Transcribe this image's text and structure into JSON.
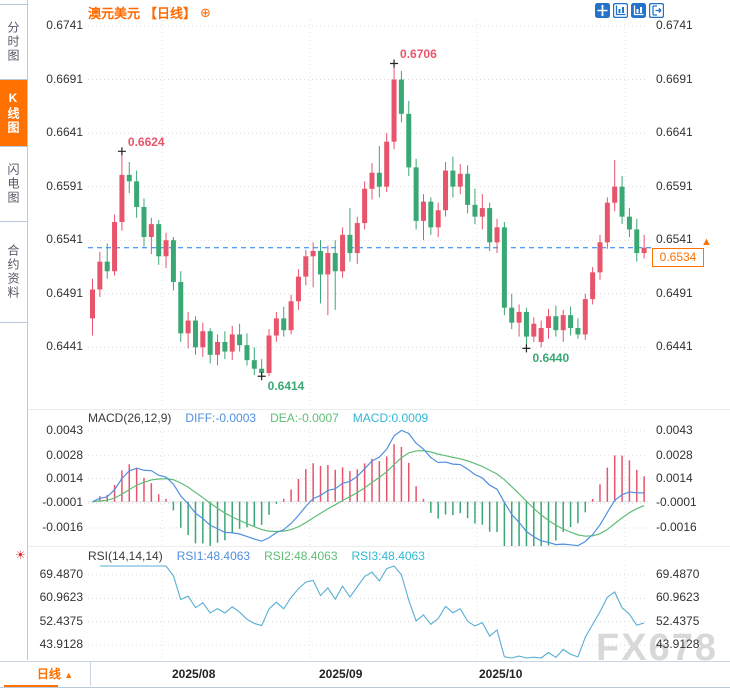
{
  "header": {
    "title": "澳元美元",
    "period_label": "【日线】",
    "add_icon": "⊕"
  },
  "toolbar": {
    "icons": [
      {
        "name": "crosshair-move-icon"
      },
      {
        "name": "yaxis-zoom-icon"
      },
      {
        "name": "yaxis-zoom-active-icon"
      },
      {
        "name": "exit-right-icon"
      }
    ]
  },
  "sidebar": {
    "items": [
      {
        "label": "分时图",
        "active": false
      },
      {
        "label": "K线图",
        "active": true
      },
      {
        "label": "闪电图",
        "active": false
      },
      {
        "label": "合约资料",
        "active": false
      }
    ]
  },
  "macd_header": {
    "name": "MACD(26,12,9)",
    "diff_label": "DIFF:-0.0003",
    "dea_label": "DEA:-0.0007",
    "macd_label": "MACD:0.0009"
  },
  "rsi_header": {
    "name": "RSI(14,14,14)",
    "rsi1_label": "RSI1:48.4063",
    "rsi2_label": "RSI2:48.4063",
    "rsi3_label": "RSI3:48.4063"
  },
  "price_tag": {
    "value": "0.6534",
    "marker": "▲"
  },
  "bottom_bar": {
    "period_tab": "日线",
    "period_arrow": "▲",
    "dates": [
      "2025/08",
      "2025/09",
      "2025/10"
    ]
  },
  "watermark": "FX678",
  "icons": {
    "settings": "☀"
  },
  "colors": {
    "up": "#e8546b",
    "down": "#3aa874",
    "accent": "#ff7100",
    "dashed_line": "#1a7af8",
    "diff_line": "#4f8fde",
    "dea_line": "#5fbd77",
    "macd_text": "#31b8d4",
    "rsi_line": "#58aed3",
    "grid": "#dcdcdc",
    "watermark": "#d8d8d8"
  },
  "chart_data": [
    {
      "type": "candlestick",
      "title": "澳元美元 日线",
      "y_ticks": [
        "0.6741",
        "0.6691",
        "0.6641",
        "0.6591",
        "0.6541",
        "0.6491",
        "0.6441"
      ],
      "x_tick_labels": [
        "2025/08",
        "2025/09",
        "2025/10"
      ],
      "ylim": [
        0.6414,
        0.6741
      ],
      "last_price": 0.6534,
      "annotations": [
        {
          "index": 4,
          "price": 0.6624,
          "kind": "high",
          "label": "0.6624"
        },
        {
          "index": 41,
          "price": 0.6706,
          "kind": "high",
          "label": "0.6706"
        },
        {
          "index": 23,
          "price": 0.6414,
          "kind": "low",
          "label": "0.6414"
        },
        {
          "index": 59,
          "price": 0.644,
          "kind": "low",
          "label": "0.6440"
        }
      ],
      "ohlc": [
        [
          0.6468,
          0.6505,
          0.6452,
          0.6495
        ],
        [
          0.6495,
          0.653,
          0.6488,
          0.6521
        ],
        [
          0.6521,
          0.6538,
          0.6505,
          0.6512
        ],
        [
          0.6512,
          0.6565,
          0.6508,
          0.6558
        ],
        [
          0.6558,
          0.6624,
          0.655,
          0.6602
        ],
        [
          0.6602,
          0.6614,
          0.6585,
          0.6596
        ],
        [
          0.6596,
          0.6606,
          0.6562,
          0.6572
        ],
        [
          0.6572,
          0.658,
          0.6535,
          0.6544
        ],
        [
          0.6544,
          0.6562,
          0.6528,
          0.6556
        ],
        [
          0.6556,
          0.656,
          0.6518,
          0.6526
        ],
        [
          0.6526,
          0.6548,
          0.6515,
          0.6541
        ],
        [
          0.6541,
          0.6544,
          0.6494,
          0.6502
        ],
        [
          0.6502,
          0.6512,
          0.6446,
          0.6454
        ],
        [
          0.6454,
          0.6474,
          0.644,
          0.6466
        ],
        [
          0.6466,
          0.647,
          0.6434,
          0.6441
        ],
        [
          0.6441,
          0.6464,
          0.6432,
          0.6456
        ],
        [
          0.6456,
          0.6459,
          0.6426,
          0.6434
        ],
        [
          0.6434,
          0.6453,
          0.6424,
          0.6446
        ],
        [
          0.6446,
          0.6456,
          0.643,
          0.6437
        ],
        [
          0.6437,
          0.6461,
          0.6429,
          0.6453
        ],
        [
          0.6453,
          0.6463,
          0.6437,
          0.6443
        ],
        [
          0.6443,
          0.6454,
          0.6424,
          0.6429
        ],
        [
          0.6429,
          0.6441,
          0.6415,
          0.6421
        ],
        [
          0.6421,
          0.643,
          0.6414,
          0.6417
        ],
        [
          0.6417,
          0.6458,
          0.6414,
          0.6452
        ],
        [
          0.6452,
          0.6474,
          0.6446,
          0.6468
        ],
        [
          0.6468,
          0.6479,
          0.6451,
          0.6457
        ],
        [
          0.6457,
          0.649,
          0.6453,
          0.6484
        ],
        [
          0.6484,
          0.6514,
          0.6476,
          0.6507
        ],
        [
          0.6507,
          0.6532,
          0.6499,
          0.6526
        ],
        [
          0.6526,
          0.6539,
          0.6497,
          0.6531
        ],
        [
          0.6531,
          0.6541,
          0.6482,
          0.6509
        ],
        [
          0.6509,
          0.6536,
          0.6471,
          0.6529
        ],
        [
          0.6529,
          0.6541,
          0.6476,
          0.6512
        ],
        [
          0.6512,
          0.6553,
          0.6506,
          0.6546
        ],
        [
          0.6546,
          0.6571,
          0.6521,
          0.6529
        ],
        [
          0.6529,
          0.6563,
          0.6519,
          0.6557
        ],
        [
          0.6557,
          0.6596,
          0.6551,
          0.6589
        ],
        [
          0.6589,
          0.6613,
          0.6579,
          0.6604
        ],
        [
          0.6604,
          0.6629,
          0.6581,
          0.6591
        ],
        [
          0.6591,
          0.6641,
          0.6586,
          0.6633
        ],
        [
          0.6633,
          0.6706,
          0.6626,
          0.6691
        ],
        [
          0.6691,
          0.6699,
          0.6651,
          0.6659
        ],
        [
          0.6659,
          0.6671,
          0.6601,
          0.6609
        ],
        [
          0.6609,
          0.6617,
          0.6551,
          0.6559
        ],
        [
          0.6559,
          0.6584,
          0.6541,
          0.6577
        ],
        [
          0.6577,
          0.6581,
          0.6546,
          0.6553
        ],
        [
          0.6553,
          0.6576,
          0.6544,
          0.6569
        ],
        [
          0.6569,
          0.6614,
          0.6563,
          0.6606
        ],
        [
          0.6606,
          0.6619,
          0.6581,
          0.6591
        ],
        [
          0.6591,
          0.6612,
          0.6584,
          0.6603
        ],
        [
          0.6603,
          0.6611,
          0.6566,
          0.6574
        ],
        [
          0.6574,
          0.6589,
          0.6556,
          0.6563
        ],
        [
          0.6563,
          0.6584,
          0.6551,
          0.6571
        ],
        [
          0.6571,
          0.6576,
          0.6531,
          0.6539
        ],
        [
          0.6539,
          0.6561,
          0.6529,
          0.6553
        ],
        [
          0.6553,
          0.6558,
          0.6471,
          0.6478
        ],
        [
          0.6478,
          0.6491,
          0.6458,
          0.6464
        ],
        [
          0.6464,
          0.6481,
          0.6451,
          0.6474
        ],
        [
          0.6474,
          0.6478,
          0.644,
          0.6451
        ],
        [
          0.6451,
          0.6469,
          0.6446,
          0.6463
        ],
        [
          0.6446,
          0.6466,
          0.6441,
          0.6459
        ],
        [
          0.6459,
          0.6477,
          0.6449,
          0.647
        ],
        [
          0.647,
          0.648,
          0.6451,
          0.6457
        ],
        [
          0.6457,
          0.6476,
          0.6446,
          0.6471
        ],
        [
          0.6471,
          0.6479,
          0.6452,
          0.6459
        ],
        [
          0.6459,
          0.6468,
          0.6449,
          0.6453
        ],
        [
          0.6453,
          0.6491,
          0.6448,
          0.6486
        ],
        [
          0.6486,
          0.6516,
          0.6481,
          0.6511
        ],
        [
          0.6511,
          0.6546,
          0.6504,
          0.6539
        ],
        [
          0.6539,
          0.6581,
          0.6533,
          0.6576
        ],
        [
          0.6576,
          0.6616,
          0.6568,
          0.6591
        ],
        [
          0.6591,
          0.6601,
          0.6556,
          0.6563
        ],
        [
          0.6563,
          0.6571,
          0.6544,
          0.6551
        ],
        [
          0.6551,
          0.6561,
          0.6521,
          0.6529
        ],
        [
          0.6529,
          0.6546,
          0.6524,
          0.6534
        ]
      ]
    },
    {
      "type": "line+bar",
      "name": "MACD(26,12,9)",
      "params": [
        26,
        12,
        9
      ],
      "last_values": {
        "diff": -0.0003,
        "dea": -0.0007,
        "macd": 0.0009
      },
      "y_ticks": [
        "0.0043",
        "0.0028",
        "0.0014",
        "-0.0001",
        "-0.0016"
      ],
      "note": "histogram red above zero / green below; DIFF blue line, DEA green line, derived from candle closes"
    },
    {
      "type": "line",
      "name": "RSI(14,14,14)",
      "params": [
        14,
        14,
        14
      ],
      "last_values": {
        "rsi1": 48.4063,
        "rsi2": 48.4063,
        "rsi3": 48.4063
      },
      "y_ticks": [
        "69.4870",
        "60.9623",
        "52.4375",
        "43.9128"
      ],
      "note": "three identical RSI(14) lines overlapping, derived from candle closes"
    }
  ]
}
